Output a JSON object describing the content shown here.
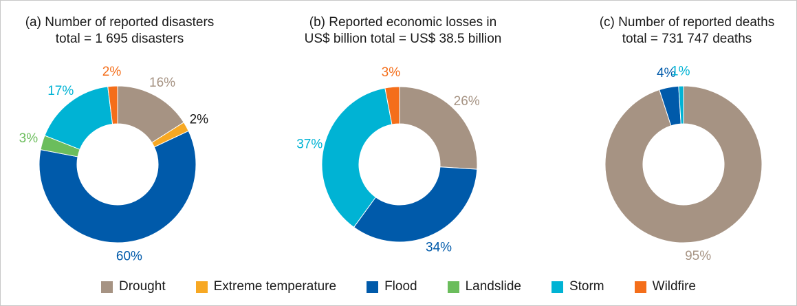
{
  "colors": {
    "Drought": "#a69383",
    "Extreme temperature": "#f7a823",
    "Flood": "#005aaa",
    "Landslide": "#6bbd5c",
    "Storm": "#00b3d4",
    "Wildfire": "#f46e1a"
  },
  "legend": [
    {
      "label": "Drought",
      "color": "#a69383"
    },
    {
      "label": "Extreme temperature",
      "color": "#f7a823"
    },
    {
      "label": "Flood",
      "color": "#005aaa"
    },
    {
      "label": "Landslide",
      "color": "#6bbd5c"
    },
    {
      "label": "Storm",
      "color": "#00b3d4"
    },
    {
      "label": "Wildfire",
      "color": "#f46e1a"
    }
  ],
  "chart_data": [
    {
      "type": "pie",
      "variant": "donut",
      "title_line1": "(a) Number of reported disasters",
      "title_line2": "total = 1 695 disasters",
      "slices": [
        {
          "category": "Drought",
          "value": 16,
          "label": "16%",
          "label_color": "#a69383"
        },
        {
          "category": "Extreme temperature",
          "value": 2,
          "label": "2%",
          "label_color": "#1a1a1a"
        },
        {
          "category": "Flood",
          "value": 60,
          "label": "60%",
          "label_color": "#005aaa"
        },
        {
          "category": "Landslide",
          "value": 3,
          "label": "3%",
          "label_color": "#6bbd5c"
        },
        {
          "category": "Storm",
          "value": 17,
          "label": "17%",
          "label_color": "#00b3d4"
        },
        {
          "category": "Wildfire",
          "value": 2,
          "label": "2%",
          "label_color": "#f46e1a"
        }
      ]
    },
    {
      "type": "pie",
      "variant": "donut",
      "title_line1": "(b) Reported economic losses in",
      "title_line2": "US$ billion total = US$ 38.5 billion",
      "slices": [
        {
          "category": "Drought",
          "value": 26,
          "label": "26%",
          "label_color": "#a69383"
        },
        {
          "category": "Flood",
          "value": 34,
          "label": "34%",
          "label_color": "#005aaa"
        },
        {
          "category": "Storm",
          "value": 37,
          "label": "37%",
          "label_color": "#00b3d4"
        },
        {
          "category": "Wildfire",
          "value": 3,
          "label": "3%",
          "label_color": "#f46e1a"
        }
      ]
    },
    {
      "type": "pie",
      "variant": "donut",
      "title_line1": "(c) Number of reported deaths",
      "title_line2": "total = 731 747 deaths",
      "slices": [
        {
          "category": "Drought",
          "value": 95,
          "label": "95%",
          "label_color": "#a69383"
        },
        {
          "category": "Flood",
          "value": 4,
          "label": "4%",
          "label_color": "#005aaa"
        },
        {
          "category": "Storm",
          "value": 1,
          "label": "1%",
          "label_color": "#00b3d4"
        }
      ]
    }
  ]
}
